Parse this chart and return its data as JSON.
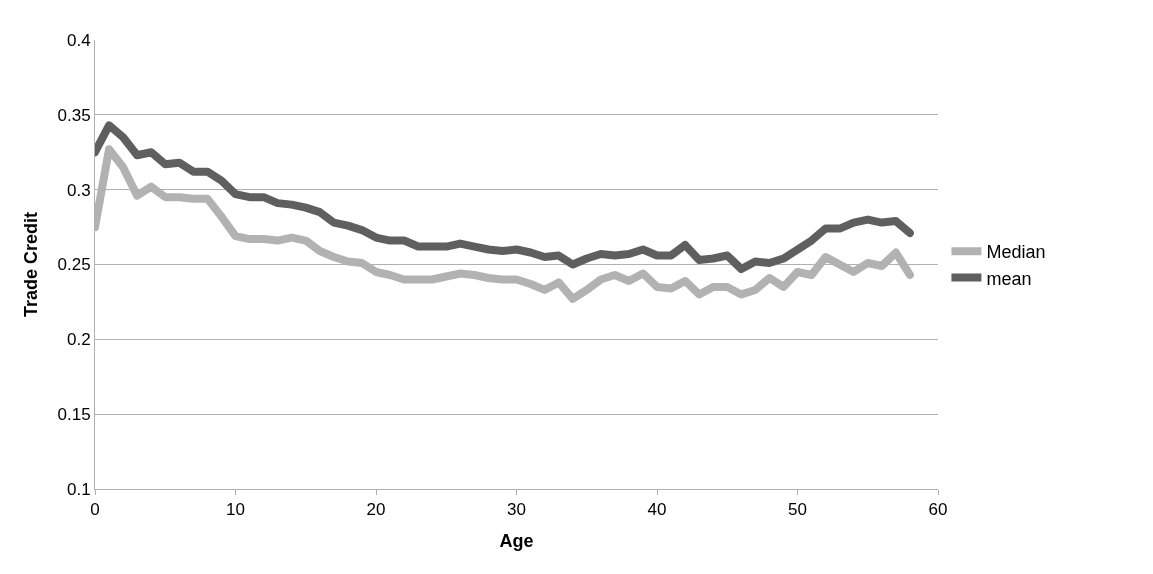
{
  "chart_data": {
    "type": "line",
    "xlabel": "Age",
    "ylabel": "Trade Credit",
    "x": [
      0,
      1,
      2,
      3,
      4,
      5,
      6,
      7,
      8,
      9,
      10,
      11,
      12,
      13,
      14,
      15,
      16,
      17,
      18,
      19,
      20,
      21,
      22,
      23,
      24,
      25,
      26,
      27,
      28,
      29,
      30,
      31,
      32,
      33,
      34,
      35,
      36,
      37,
      38,
      39,
      40,
      41,
      42,
      43,
      44,
      45,
      46,
      47,
      48,
      49,
      50,
      51,
      52,
      53,
      54,
      55,
      56,
      57,
      58
    ],
    "series": [
      {
        "name": "Median",
        "color": "#b2b2b2",
        "values": [
          0.275,
          0.327,
          0.315,
          0.296,
          0.302,
          0.295,
          0.295,
          0.294,
          0.294,
          0.282,
          0.269,
          0.267,
          0.267,
          0.266,
          0.268,
          0.266,
          0.259,
          0.255,
          0.252,
          0.251,
          0.245,
          0.243,
          0.24,
          0.24,
          0.24,
          0.242,
          0.244,
          0.243,
          0.241,
          0.24,
          0.24,
          0.237,
          0.233,
          0.238,
          0.227,
          0.233,
          0.24,
          0.243,
          0.239,
          0.244,
          0.235,
          0.234,
          0.239,
          0.23,
          0.235,
          0.235,
          0.23,
          0.233,
          0.241,
          0.235,
          0.245,
          0.243,
          0.255,
          0.25,
          0.245,
          0.251,
          0.249,
          0.258,
          0.243
        ]
      },
      {
        "name": "mean",
        "color": "#5f5f5f",
        "values": [
          0.325,
          0.343,
          0.335,
          0.323,
          0.325,
          0.317,
          0.318,
          0.312,
          0.312,
          0.306,
          0.297,
          0.295,
          0.295,
          0.291,
          0.29,
          0.288,
          0.285,
          0.278,
          0.276,
          0.273,
          0.268,
          0.266,
          0.266,
          0.262,
          0.262,
          0.262,
          0.264,
          0.262,
          0.26,
          0.259,
          0.26,
          0.258,
          0.255,
          0.256,
          0.25,
          0.254,
          0.257,
          0.256,
          0.257,
          0.26,
          0.256,
          0.256,
          0.263,
          0.253,
          0.254,
          0.256,
          0.247,
          0.252,
          0.251,
          0.254,
          0.26,
          0.266,
          0.274,
          0.274,
          0.278,
          0.28,
          0.278,
          0.279,
          0.271
        ]
      }
    ],
    "xlim": [
      0,
      60
    ],
    "xticks": [
      0,
      10,
      20,
      30,
      40,
      50,
      60
    ],
    "ylim": [
      0.1,
      0.4
    ],
    "yticks": [
      0.1,
      0.15,
      0.2,
      0.25,
      0.3,
      0.35,
      0.4
    ],
    "grid": "y",
    "legend": "right",
    "line_style": "solid"
  }
}
